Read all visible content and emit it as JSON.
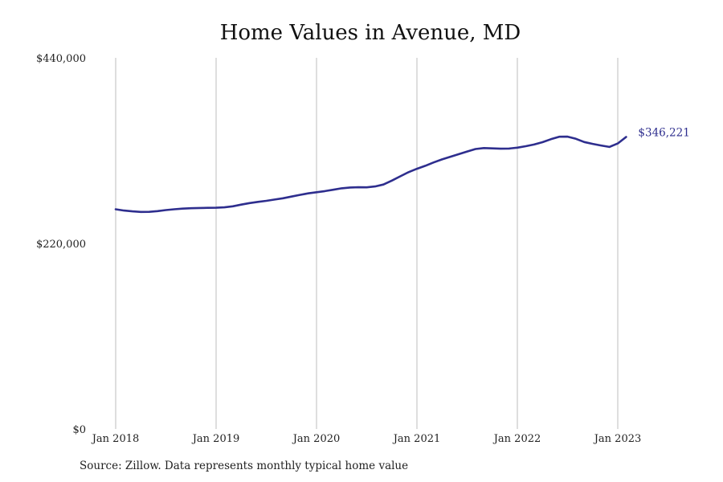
{
  "chart_data": {
    "type": "line",
    "title": "Home Values in Avenue, MD",
    "source": "Source: Zillow. Data represents monthly typical home value",
    "xlabel": "",
    "ylabel": "",
    "ylim": [
      0,
      440000
    ],
    "y_ticks": [
      {
        "value": 0,
        "label": "$0"
      },
      {
        "value": 220000,
        "label": "$220,000"
      },
      {
        "value": 440000,
        "label": "$440,000"
      }
    ],
    "x_ticks": [
      {
        "date": "2018-01",
        "label": "Jan 2018"
      },
      {
        "date": "2019-01",
        "label": "Jan 2019"
      },
      {
        "date": "2020-01",
        "label": "Jan 2020"
      },
      {
        "date": "2021-01",
        "label": "Jan 2021"
      },
      {
        "date": "2022-01",
        "label": "Jan 2022"
      },
      {
        "date": "2023-01",
        "label": "Jan 2023"
      }
    ],
    "grid": "vertical",
    "line_color": "#2e2e8e",
    "end_label": "$346,221",
    "series": [
      {
        "x": [
          "2018-01",
          "2018-02",
          "2018-03",
          "2018-04",
          "2018-05",
          "2018-06",
          "2018-07",
          "2018-08",
          "2018-09",
          "2018-10",
          "2018-11",
          "2018-12",
          "2019-01",
          "2019-02",
          "2019-03",
          "2019-04",
          "2019-05",
          "2019-06",
          "2019-07",
          "2019-08",
          "2019-09",
          "2019-10",
          "2019-11",
          "2019-12",
          "2020-01",
          "2020-02",
          "2020-03",
          "2020-04",
          "2020-05",
          "2020-06",
          "2020-07",
          "2020-08",
          "2020-09",
          "2020-10",
          "2020-11",
          "2020-12",
          "2021-01",
          "2021-02",
          "2021-03",
          "2021-04",
          "2021-05",
          "2021-06",
          "2021-07",
          "2021-08",
          "2021-09",
          "2021-10",
          "2021-11",
          "2021-12",
          "2022-01",
          "2022-02",
          "2022-03",
          "2022-04",
          "2022-05",
          "2022-06",
          "2022-07",
          "2022-08",
          "2022-09",
          "2022-10",
          "2022-11",
          "2022-12",
          "2023-01",
          "2023-02"
        ],
        "y": [
          260500,
          259000,
          258000,
          257300,
          257400,
          258300,
          259500,
          260500,
          261200,
          261700,
          262000,
          262200,
          262300,
          262800,
          264000,
          266000,
          267800,
          269200,
          270500,
          272000,
          273500,
          275500,
          277500,
          279300,
          280700,
          282000,
          283600,
          285300,
          286300,
          286600,
          286500,
          287500,
          289800,
          294500,
          299500,
          304500,
          308500,
          312000,
          316000,
          319600,
          322800,
          325800,
          329000,
          331900,
          333000,
          332700,
          332300,
          332500,
          333500,
          335200,
          337200,
          340000,
          343500,
          346500,
          346600,
          344000,
          340200,
          338000,
          336100,
          334400,
          338500,
          346221
        ]
      }
    ]
  }
}
